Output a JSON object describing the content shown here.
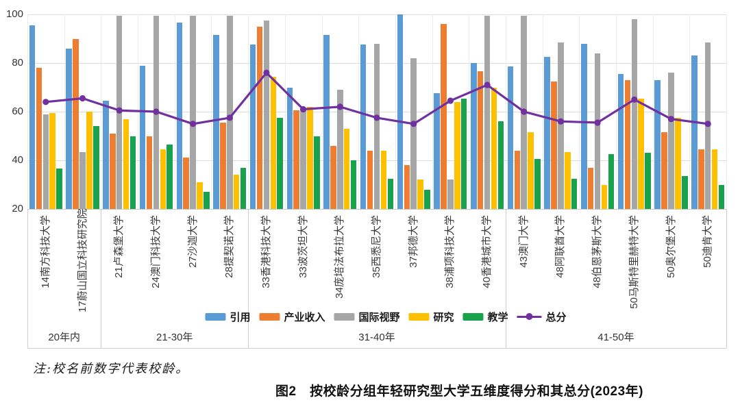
{
  "figure": {
    "note": "注:校名前数字代表校龄。",
    "caption": "图2　按校龄分组年轻研究型大学五维度得分和其总分(2023年)"
  },
  "chart_data": {
    "type": "bar",
    "subtype": "grouped-bars-with-line-overlay",
    "title": "图2 按校龄分组年轻研究型大学五维度得分和其总分(2023年)",
    "note": "注:校名前数字代表校龄。",
    "ylim": [
      20,
      100
    ],
    "yticks": [
      20,
      40,
      60,
      80,
      100
    ],
    "grid": "horizontal-and-category-boundaries",
    "legend_position": "bottom-center",
    "age_groups": [
      {
        "label": "20年内",
        "count": 2
      },
      {
        "label": "21-30年",
        "count": 4
      },
      {
        "label": "31-40年",
        "count": 7
      },
      {
        "label": "41-50年",
        "count": 6
      }
    ],
    "categories": [
      "14南方科技大学",
      "17蔚山国立科技研究院",
      "21卢森堡大学",
      "24澳门科技大学",
      "27沙迦大学",
      "28提契诺大学",
      "33香港科技大学",
      "33波茨坦大学",
      "34庞培法布拉大学",
      "35西悉尼大学",
      "37邦德大学",
      "38浦项科技大学",
      "40香港城市大学",
      "43澳门大学",
      "48阿联酋大学",
      "48伯恩茅斯大学",
      "50马斯特里赫特大学",
      "50奥尔堡大学",
      "50迪肯大学"
    ],
    "series": [
      {
        "name": "引用",
        "type": "bar",
        "color": "#5B9BD5",
        "values": [
          95.5,
          86,
          64.5,
          79,
          96.5,
          91.5,
          87.5,
          70,
          91.5,
          87.5,
          100,
          67.5,
          80,
          78.5,
          82.5,
          88,
          75.5,
          73,
          83
        ]
      },
      {
        "name": "产业收入",
        "type": "bar",
        "color": "#ED7D31",
        "values": [
          78,
          90,
          51,
          50,
          41,
          55.5,
          95,
          60.5,
          46,
          44,
          38,
          96,
          76.5,
          44,
          72.5,
          37,
          73,
          51.5,
          44.5
        ]
      },
      {
        "name": "国际视野",
        "type": "bar",
        "color": "#A6A6A6",
        "values": [
          59,
          43.5,
          99.5,
          99.5,
          99.5,
          99.5,
          97.5,
          61.5,
          69,
          88,
          82,
          32,
          99.5,
          99.5,
          88.5,
          84,
          98,
          76,
          88.5
        ]
      },
      {
        "name": "研究",
        "type": "bar",
        "color": "#FFC000",
        "values": [
          59.5,
          60,
          57,
          44.5,
          31,
          34,
          74.5,
          62,
          53,
          44,
          32,
          64,
          70,
          51.5,
          43.5,
          30,
          65.5,
          57.5,
          44.5
        ]
      },
      {
        "name": "教学",
        "type": "bar",
        "color": "#18A24C",
        "values": [
          36.5,
          54,
          50,
          46.5,
          27,
          37,
          57.5,
          50,
          40,
          32.5,
          28,
          65.5,
          56,
          40.5,
          32.5,
          42.5,
          43,
          33.5,
          30
        ]
      },
      {
        "name": "总分",
        "type": "line",
        "color": "#7030A0",
        "values": [
          64,
          65.5,
          60.5,
          60,
          55,
          57.5,
          76,
          61,
          62,
          57.5,
          55,
          64.5,
          71,
          60,
          56,
          55.5,
          65,
          57,
          55
        ]
      }
    ]
  }
}
